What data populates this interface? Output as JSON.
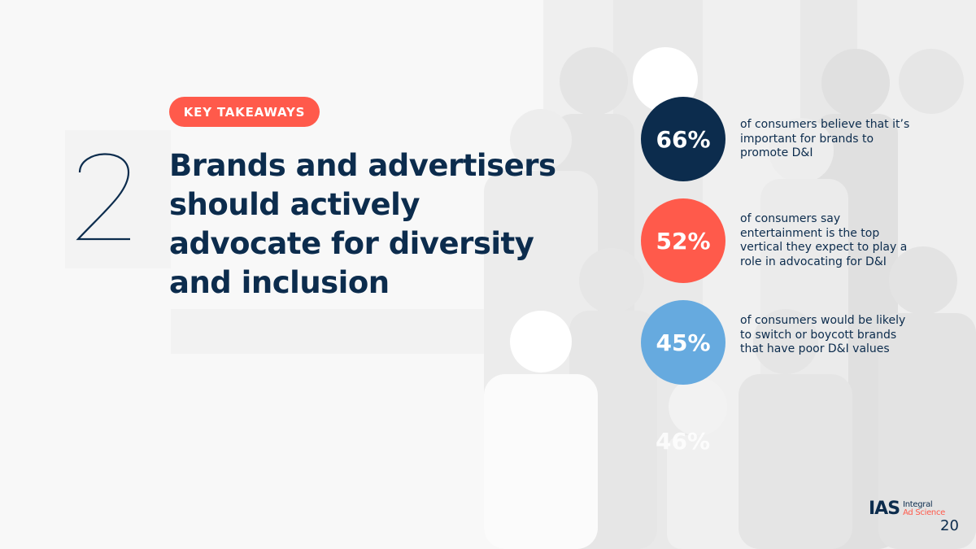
{
  "slide": {
    "tag": "KEY TAKEAWAYS",
    "number": "2",
    "headline": "Brands and advertisers should actively advocate for diversity and inclusion",
    "stats": [
      {
        "value": "66%",
        "text": "of consumers believe that it’s important for brands to promote D&I",
        "color": "#0c2c4d"
      },
      {
        "value": "52%",
        "text": "of consumers say entertainment is the top vertical they expect to play a role in advocating for D&I",
        "color": "#ff5a4b"
      },
      {
        "value": "45%",
        "text": "of consumers would be likely to switch or boycott brands that have poor D&I values",
        "color": "#66aadf"
      }
    ],
    "ghost_value": "46%",
    "page_number": "20"
  },
  "logo": {
    "mark": "IAS",
    "line1": "Integral",
    "line2": "Ad Science"
  },
  "colors": {
    "navy": "#0c2c4d",
    "coral": "#ff5a4b",
    "sky": "#66aadf",
    "background": "#f8f8f8"
  }
}
